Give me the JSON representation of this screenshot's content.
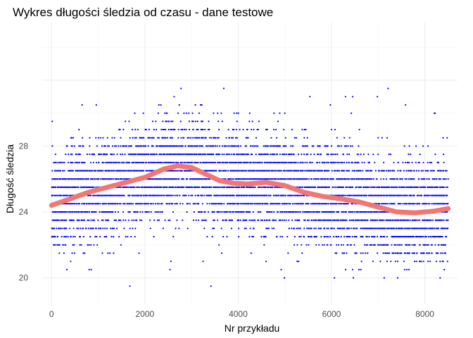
{
  "chart_data": {
    "type": "scatter",
    "title": "Wykres długości śledzia od czasu - dane testowe",
    "xlabel": "Nr przykładu",
    "ylabel": "Długość śledzia",
    "xlim": [
      -200,
      8700
    ],
    "ylim": [
      18.4,
      35.5
    ],
    "x_ticks": [
      0,
      2000,
      4000,
      6000,
      8000
    ],
    "y_ticks": [
      20,
      24,
      28
    ],
    "grid": true,
    "point_color": "#0000ff",
    "smooth_color": "#f07872",
    "points": {
      "x_range": [
        0,
        8500
      ],
      "y_levels": [
        19.5,
        20,
        20.5,
        21,
        21.5,
        22,
        22.5,
        23,
        23.5,
        24,
        24.5,
        25,
        25.5,
        26,
        26.5,
        27,
        27.5,
        28,
        28.5,
        29,
        29.5,
        30,
        30.5,
        31,
        31.5
      ],
      "count_approx": 8500
    },
    "smooth_line": {
      "x": [
        0,
        400,
        800,
        1200,
        1600,
        2000,
        2400,
        2700,
        3000,
        3300,
        3600,
        3900,
        4200,
        4600,
        5000,
        5400,
        5800,
        6200,
        6600,
        7000,
        7400,
        7800,
        8200,
        8500
      ],
      "y": [
        24.4,
        24.8,
        25.2,
        25.5,
        25.8,
        26.1,
        26.6,
        26.8,
        26.7,
        26.3,
        25.9,
        25.75,
        25.7,
        25.8,
        25.6,
        25.2,
        24.95,
        24.8,
        24.6,
        24.3,
        24.0,
        23.95,
        24.05,
        24.2
      ]
    }
  }
}
